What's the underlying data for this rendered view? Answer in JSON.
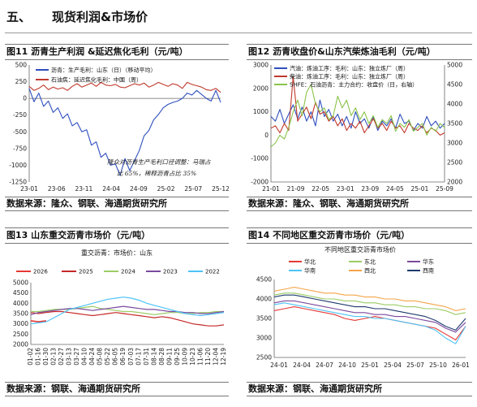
{
  "section": {
    "number": "五、",
    "title": "现货利润&市场价"
  },
  "charts": [
    {
      "head": "图11  沥青生产利润 &延迟焦化毛利（元/吨）",
      "foot": "数据来源：隆众、钢联、海通期货研究所",
      "chart_data": {
        "type": "line",
        "x_ticks": [
          "23-01",
          "23-06",
          "23-11",
          "24-04",
          "24-09",
          "25-02",
          "25-07",
          "25-12"
        ],
        "ylim": [
          -1250,
          500
        ],
        "y_ticks": [
          500,
          250,
          0,
          -250,
          -500,
          -750,
          -1000,
          -1250
        ],
        "series": [
          {
            "name": "沥青：生产毛利：山东（日）（移动平均）",
            "color": "#2f4fbf",
            "values": [
              150,
              -50,
              80,
              -120,
              -40,
              -210,
              -140,
              -300,
              -230,
              -410,
              -360,
              -500,
              -470,
              -700,
              -650,
              -880,
              -820,
              -1000,
              -980,
              -1150,
              -900,
              -1080,
              -930,
              -780,
              -560,
              -480,
              -320,
              -240,
              -140,
              -90,
              -60,
              -40,
              0,
              80,
              50,
              120,
              60,
              0,
              -40,
              120,
              -60
            ]
          },
          {
            "name": "石油焦：延迟焦化毛利：中国（周）",
            "color": "#c0392b",
            "values": [
              180,
              120,
              150,
              200,
              130,
              170,
              140,
              160,
              120,
              180,
              220,
              170,
              200,
              230,
              180,
              240,
              200,
              190,
              210,
              170,
              160,
              190,
              220,
              200,
              230,
              170,
              200,
              240,
              210,
              180,
              220,
              200,
              150,
              240,
              210,
              190,
              170,
              130,
              120,
              150,
              90
            ]
          }
        ],
        "annotation": [
          "隆众对沥青生产毛利口径调整：马瑞占",
          "比 65%，稀释沥青占比 35%"
        ]
      }
    },
    {
      "head": "图12  沥青收盘价&山东汽柴炼油毛利（元/吨）",
      "foot": "数据来源：隆众、钢联、海通期货研究所",
      "chart_data": {
        "type": "line",
        "x_ticks": [
          "21-01",
          "21-09",
          "22-05",
          "23-01",
          "23-09",
          "24-05",
          "25-01",
          "25-09"
        ],
        "left_ylim": [
          -2000,
          3000
        ],
        "left_ticks": [
          3000,
          2000,
          1000,
          0,
          -1000,
          -2000
        ],
        "right_ylim": [
          2000,
          5000
        ],
        "right_ticks": [
          5000,
          4500,
          4000,
          3500,
          3000,
          2500,
          2000
        ],
        "series": [
          {
            "name": "汽油：炼油工序：毛利：山东：独立炼厂（周）",
            "color": "#2f4fbf",
            "values": [
              800,
              600,
              1100,
              500,
              900,
              1300,
              700,
              1200,
              600,
              1000,
              400,
              1500,
              800,
              1100,
              600,
              900,
              400,
              800,
              300,
              1000,
              500,
              700,
              300,
              800,
              200,
              600,
              400,
              700,
              300,
              900,
              500,
              600,
              200,
              500,
              300,
              800,
              400,
              600,
              300,
              500
            ]
          },
          {
            "name": "柴油：炼油工序：毛利：山东：独立炼厂（周）",
            "color": "#c0392b",
            "values": [
              300,
              400,
              100,
              500,
              200,
              2500,
              600,
              900,
              1200,
              700,
              1400,
              900,
              1000,
              600,
              800,
              400,
              700,
              200,
              500,
              300,
              600,
              100,
              400,
              700,
              300,
              500,
              200,
              600,
              300,
              400,
              100,
              500,
              300,
              200,
              400,
              100,
              300,
              200,
              0,
              100
            ]
          },
          {
            "name": "SHFE：石油沥青：主力合约：收盘价（日，右轴）",
            "color": "#8bc34a",
            "values": [
              2900,
              3000,
              3200,
              3100,
              3400,
              3800,
              4100,
              3700,
              4300,
              4500,
              4000,
              3800,
              3900,
              3600,
              3700,
              4200,
              3900,
              4100,
              3700,
              3900,
              3600,
              3800,
              3500,
              3700,
              3400,
              3600,
              3500,
              3700,
              3300,
              3500,
              3400,
              3600,
              3300,
              3400,
              3500,
              3200,
              3400,
              3300,
              3500,
              3400
            ]
          }
        ]
      }
    },
    {
      "head": "图13  山东重交沥青市场价（元/吨）",
      "foot": "数据来源：钢联、海通期货研究所",
      "chart_data": {
        "type": "line",
        "subtitle": "重交沥青：市场价：山东",
        "x_ticks": [
          "01-02",
          "01-16",
          "01-30",
          "02-13",
          "02-27",
          "03-13",
          "03-27",
          "04-10",
          "04-24",
          "05-08",
          "05-22",
          "06-05",
          "06-19",
          "07-03",
          "07-17",
          "07-31",
          "08-14",
          "08-28",
          "09-11",
          "09-25",
          "10-09",
          "10-23",
          "11-06",
          "11-20",
          "12-04",
          "12-19"
        ],
        "ylim": [
          2000,
          5000
        ],
        "y_ticks": [
          5000,
          4500,
          4000,
          3500,
          3000,
          2500,
          2000
        ],
        "series": [
          {
            "name": "2026",
            "color": "#e53935",
            "values": [
              3150,
              3100,
              3150
            ]
          },
          {
            "name": "2025",
            "color": "#c62828",
            "values": [
              3550,
              3500,
              3550,
              3600,
              3600,
              3550,
              3500,
              3450,
              3400,
              3450,
              3500,
              3550,
              3500,
              3450,
              3400,
              3350,
              3300,
              3350,
              3300,
              3200,
              3100,
              3000,
              2950,
              2900,
              2900,
              2950
            ]
          },
          {
            "name": "2024",
            "color": "#9ccc65",
            "values": [
              3600,
              3600,
              3650,
              3700,
              3700,
              3700,
              3750,
              3800,
              3850,
              3750,
              3700,
              3650,
              3600,
              3600,
              3550,
              3500,
              3450,
              3500,
              3550,
              3550,
              3500,
              3500,
              3550,
              3550,
              3600,
              3600
            ]
          },
          {
            "name": "2023",
            "color": "#7b4a9e",
            "values": [
              3450,
              3550,
              3600,
              3650,
              3700,
              3750,
              3750,
              3700,
              3650,
              3700,
              3750,
              3800,
              3850,
              3800,
              3750,
              3700,
              3700,
              3650,
              3600,
              3600,
              3550,
              3550,
              3500,
              3500,
              3550,
              3600
            ]
          },
          {
            "name": "2022",
            "color": "#4fc3f7",
            "values": [
              3000,
              3050,
              3100,
              3300,
              3500,
              3700,
              3800,
              3900,
              4000,
              4100,
              4200,
              4250,
              4300,
              4250,
              4150,
              4000,
              3900,
              3800,
              3700,
              3600,
              3500,
              3450,
              3400,
              3450,
              3500,
              3550
            ]
          }
        ]
      }
    },
    {
      "head": "图14  不同地区重交沥青市场价（元/吨）",
      "foot": "数据来源：钢联、海通期货研究所",
      "chart_data": {
        "type": "line",
        "subtitle": "不同地区重交沥青市场价",
        "x_ticks": [
          "24-01",
          "24-04",
          "24-07",
          "24-10",
          "25-01",
          "25-04",
          "25-07",
          "25-10",
          "26-01"
        ],
        "ylim": [
          2500,
          4500
        ],
        "y_ticks": [
          4500,
          4000,
          3500,
          3000,
          2500
        ],
        "series": [
          {
            "name": "华北",
            "color": "#e53935",
            "values": [
              3700,
              3750,
              3800,
              3750,
              3700,
              3650,
              3600,
              3500,
              3450,
              3500,
              3550,
              3500,
              3450,
              3400,
              3350,
              3300,
              3250,
              3100,
              2950,
              3300
            ]
          },
          {
            "name": "东北",
            "color": "#9ccc65",
            "values": [
              4100,
              4150,
              4150,
              4100,
              4050,
              4000,
              4000,
              3950,
              3950,
              3900,
              3900,
              3850,
              3850,
              3800,
              3800,
              3750,
              3750,
              3700,
              3600,
              3650
            ]
          },
          {
            "name": "华东",
            "color": "#7b4a9e",
            "values": [
              3900,
              3950,
              3950,
              3900,
              3850,
              3800,
              3750,
              3700,
              3650,
              3650,
              3600,
              3600,
              3550,
              3550,
              3500,
              3450,
              3400,
              3250,
              3150,
              3400
            ]
          },
          {
            "name": "华南",
            "color": "#4fc3f7",
            "values": [
              3850,
              3900,
              3850,
              3800,
              3750,
              3700,
              3650,
              3600,
              3550,
              3550,
              3500,
              3500,
              3450,
              3400,
              3350,
              3300,
              3200,
              3000,
              2850,
              3300
            ]
          },
          {
            "name": "西北",
            "color": "#f5a54a",
            "values": [
              4200,
              4250,
              4300,
              4250,
              4200,
              4150,
              4150,
              4100,
              4100,
              4050,
              4050,
              4000,
              4000,
              3950,
              3950,
              3900,
              3850,
              3800,
              3700,
              3750
            ]
          },
          {
            "name": "西南",
            "color": "#1f3a6e",
            "values": [
              4050,
              4100,
              4100,
              4050,
              4000,
              3950,
              3900,
              3850,
              3800,
              3800,
              3750,
              3750,
              3700,
              3650,
              3600,
              3550,
              3450,
              3300,
              3200,
              3500
            ]
          }
        ]
      }
    }
  ]
}
